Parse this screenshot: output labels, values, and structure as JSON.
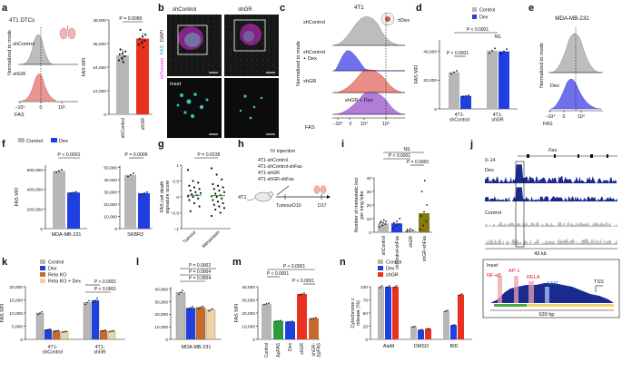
{
  "figure": {
    "panel_letters": [
      "a",
      "b",
      "c",
      "d",
      "e",
      "f",
      "g",
      "h",
      "i",
      "j",
      "k",
      "l",
      "m",
      "n"
    ]
  },
  "colors": {
    "control": "#b7b7b7",
    "dex": "#1f3fe0",
    "shgr": "#e8321f",
    "relako": "#c66a2d",
    "relako_dex": "#ecd3a8",
    "olive": "#857a10",
    "green": "#2e9a3a"
  },
  "panel_a": {
    "title": "4T1 DTCs",
    "hist_labels": [
      "shControl",
      "shGR"
    ],
    "ylabel": "Normalized to mode",
    "xlabel": "FAS",
    "xticks": [
      "−10⁵",
      "0",
      "10⁵"
    ]
  },
  "panel_b": {
    "col_titles": [
      "shControl",
      "shGR"
    ],
    "stain_labels": [
      "tdTomato",
      "FAS",
      "DAPI"
    ],
    "inset_label": "Inset"
  },
  "panel_c": {
    "title": "4T1",
    "treatment_label": "±Dex",
    "row_labels": [
      "shControl",
      "shControl\n+ Dex",
      "shGR",
      "shGR\n+ Dex"
    ],
    "ylabel": "Normalized to mode",
    "xlabel": "FAS",
    "xticks": [
      "−10⁴",
      "0",
      "10⁴",
      "10⁵"
    ]
  },
  "panel_e": {
    "title": "MDA-MB-231",
    "hist_labels": [
      "Dex"
    ],
    "ylabel": "Normalized to mode",
    "xlabel": "FAS",
    "xticks": [
      "−10⁴",
      "0",
      "10⁴"
    ]
  },
  "panel_g": {
    "groups": [
      "Tumour",
      "Metastasis"
    ],
    "ylabel": "FAS cell death\nsignature score",
    "p_value": "P = 0.0235"
  },
  "panel_h": {
    "injection_label": "IV injection",
    "lines": [
      "4T1-shControl",
      "4T1-shControl-shFas",
      "4T1-shGR",
      "4T1-shGR-shFas"
    ],
    "timeline": [
      "4T1",
      "Tumour",
      "D10",
      "D17"
    ]
  },
  "panel_j": {
    "gene": "Fas",
    "range_label": "0–14",
    "track_labels": [
      "Dex",
      "Control"
    ],
    "scale": "43 kb",
    "inset_label": "Inset",
    "motifs": [
      "NF-κB",
      "AP-1",
      "RELA",
      "STAT",
      "TSS"
    ],
    "inset_scale": "639 bp"
  },
  "chart_data": [
    {
      "panel": "a",
      "type": "bar",
      "categories": [
        "shControl",
        "shGR"
      ],
      "values": [
        30000,
        38500
      ],
      "points": [
        [
          27500,
          28500,
          29500,
          30500,
          31000,
          32000,
          33000,
          26500
        ],
        [
          35500,
          36500,
          37500,
          38500,
          39500,
          40500,
          43000,
          34000
        ]
      ],
      "ylabel": "FAS MFI",
      "yticks": [
        0,
        12000,
        24000,
        36000,
        48000
      ],
      "ytick_labels": [
        "0",
        "12,000",
        "24,000",
        "36,000",
        "48,000"
      ],
      "ylim": [
        0,
        48000
      ],
      "p_values": [
        "P = 0.0080"
      ]
    },
    {
      "panel": "d",
      "type": "bar",
      "legend": [
        "Control",
        "Dex"
      ],
      "categories": [
        "4T1-\nshControl",
        "4T1-\nshGR"
      ],
      "series": [
        {
          "name": "Control",
          "values": [
            25500,
            40500
          ]
        },
        {
          "name": "Dex",
          "values": [
            9000,
            40000
          ]
        }
      ],
      "ylabel": "FAS MFI",
      "yticks": [
        0,
        20000,
        40000
      ],
      "ytick_labels": [
        "0",
        "20,000",
        "40,000"
      ],
      "ylim": [
        0,
        48000
      ],
      "p_values": [
        "P < 0.0001",
        "P < 0.0001",
        "NS"
      ]
    },
    {
      "panel": "f-left",
      "type": "bar",
      "legend": [
        "Control",
        "Dex"
      ],
      "categories": [
        "MDA-MB-231"
      ],
      "series": [
        {
          "name": "Control",
          "values": [
            590000
          ]
        },
        {
          "name": "Dex",
          "values": [
            370000
          ]
        }
      ],
      "ylabel": "FAS MFI",
      "yticks": [
        0,
        200000,
        400000,
        600000
      ],
      "ytick_labels": [
        "0",
        "200,000",
        "400,000",
        "600,000"
      ],
      "ylim": [
        0,
        650000
      ],
      "p_values": [
        "P < 0.0001"
      ]
    },
    {
      "panel": "f-right",
      "type": "bar",
      "categories": [
        "SKBR3"
      ],
      "series": [
        {
          "name": "Control",
          "values": [
            44000
          ]
        },
        {
          "name": "Dex",
          "values": [
            29000
          ]
        }
      ],
      "yticks": [
        0,
        10000,
        20000,
        30000,
        40000,
        50000
      ],
      "ytick_labels": [
        "0",
        "10,000",
        "20,000",
        "30,000",
        "40,000",
        "50,000"
      ],
      "ylim": [
        0,
        52000
      ],
      "p_values": [
        "P = 0.0006"
      ]
    },
    {
      "panel": "g",
      "type": "scatter",
      "categories": [
        "Tumour",
        "Metastasis"
      ],
      "medians": [
        0.05,
        0.04
      ],
      "points": [
        [
          0.85,
          0.5,
          0.45,
          0.35,
          0.3,
          0.25,
          0.2,
          0.15,
          0.12,
          0.08,
          0.05,
          0.02,
          0.0,
          -0.05,
          -0.1,
          -0.2,
          -0.3,
          -0.45
        ],
        [
          0.9,
          0.7,
          0.55,
          0.4,
          0.35,
          0.3,
          0.25,
          0.2,
          0.15,
          0.1,
          0.05,
          0.02,
          0.0,
          -0.05,
          -0.1,
          -0.15,
          -0.2,
          -0.25,
          -0.3,
          -0.35,
          -0.4,
          -0.5,
          -0.6
        ]
      ],
      "yticks": [
        -1,
        -0.5,
        0,
        0.5,
        1
      ],
      "ytick_labels": [
        "−1",
        "−0.5",
        "0",
        "0.5",
        "1"
      ],
      "ylim": [
        -1,
        1
      ]
    },
    {
      "panel": "i",
      "type": "bar",
      "categories": [
        "shControl",
        "shControl-shFas",
        "shGR",
        "shGR-shFas"
      ],
      "values": [
        6.5,
        6.5,
        1.5,
        14
      ],
      "points": [
        [
          4,
          5,
          6,
          7,
          7,
          8,
          8,
          9
        ],
        [
          3,
          5,
          6,
          7,
          8,
          10
        ],
        [
          0.5,
          1,
          1.5,
          2,
          2.5
        ],
        [
          2,
          5,
          8,
          12,
          15,
          20,
          30,
          38
        ]
      ],
      "ylabel": "Number of metastatic loci\nper lung lobe",
      "yticks": [
        0,
        10,
        20,
        30,
        40
      ],
      "ytick_labels": [
        "0",
        "10",
        "20",
        "30",
        "40"
      ],
      "ylim": [
        0,
        40
      ],
      "p_values": [
        "NS",
        "P < 0.0001",
        "P = 0.0065"
      ]
    },
    {
      "panel": "k",
      "type": "bar",
      "legend": [
        "Control",
        "Dex",
        "Rela KO",
        "Rela KO + Dex"
      ],
      "categories": [
        "4T1-\nshControl",
        "4T1-\nshGR"
      ],
      "series": [
        {
          "name": "Control",
          "values": [
            10000,
            14000
          ]
        },
        {
          "name": "Dex",
          "values": [
            3700,
            14800
          ]
        },
        {
          "name": "Rela KO",
          "values": [
            3200,
            3300
          ]
        },
        {
          "name": "Rela KO + Dex",
          "values": [
            2900,
            3100
          ]
        }
      ],
      "ylabel": "FAS MFI",
      "yticks": [
        0,
        5000,
        10000,
        15000,
        20000
      ],
      "ytick_labels": [
        "0",
        "5,000",
        "10,000",
        "15,000",
        "20,000"
      ],
      "ylim": [
        0,
        20000
      ],
      "p_values": [
        "P < 0.0001",
        "P < 0.0001"
      ]
    },
    {
      "panel": "l",
      "type": "bar",
      "categories": [
        "MDA-MB-231"
      ],
      "series": [
        {
          "name": "Control",
          "values": [
            37500
          ]
        },
        {
          "name": "Dex",
          "values": [
            25000
          ]
        },
        {
          "name": "Rela KO",
          "values": [
            25500
          ]
        },
        {
          "name": "Rela KO + Dex",
          "values": [
            23500
          ]
        }
      ],
      "yticks": [
        0,
        10000,
        20000,
        30000,
        40000
      ],
      "ytick_labels": [
        "0",
        "10,000",
        "20,000",
        "30,000",
        "40,000"
      ],
      "ylim": [
        0,
        42000
      ],
      "p_values": [
        "P = 0.0002",
        "P = 0.0004",
        "P = 0.0004"
      ]
    },
    {
      "panel": "m",
      "type": "bar",
      "categories": [
        "Control",
        "ΔpFAS",
        "Dex",
        "shGR",
        "shGR-\nΔpFAS"
      ],
      "values": [
        27000,
        14000,
        13500,
        34500,
        16000
      ],
      "ylabel": "FAS MFI",
      "yticks": [
        0,
        10000,
        20000,
        30000,
        40000
      ],
      "ytick_labels": [
        "0",
        "10,000",
        "20,000",
        "30,000",
        "40,000"
      ],
      "ylim": [
        0,
        40000
      ],
      "p_values": [
        "P < 0.0001",
        "P < 0.0001",
        "P < 0.0001"
      ]
    },
    {
      "panel": "n",
      "type": "bar",
      "legend": [
        "Control",
        "Dex",
        "shGR"
      ],
      "categories": [
        "AlaM",
        "DMSO",
        "BID"
      ],
      "series": [
        {
          "name": "Control",
          "values": [
            100,
            24,
            54
          ]
        },
        {
          "name": "Dex",
          "values": [
            100,
            18,
            27
          ]
        },
        {
          "name": "shGR",
          "values": [
            100,
            20,
            85
          ]
        }
      ],
      "ylabel": "Cytochrome c\nrelease (%)",
      "yticks": [
        0,
        25,
        50,
        75,
        100
      ],
      "ytick_labels": [
        "0",
        "25",
        "50",
        "75",
        "100"
      ],
      "ylim": [
        0,
        100
      ]
    }
  ]
}
